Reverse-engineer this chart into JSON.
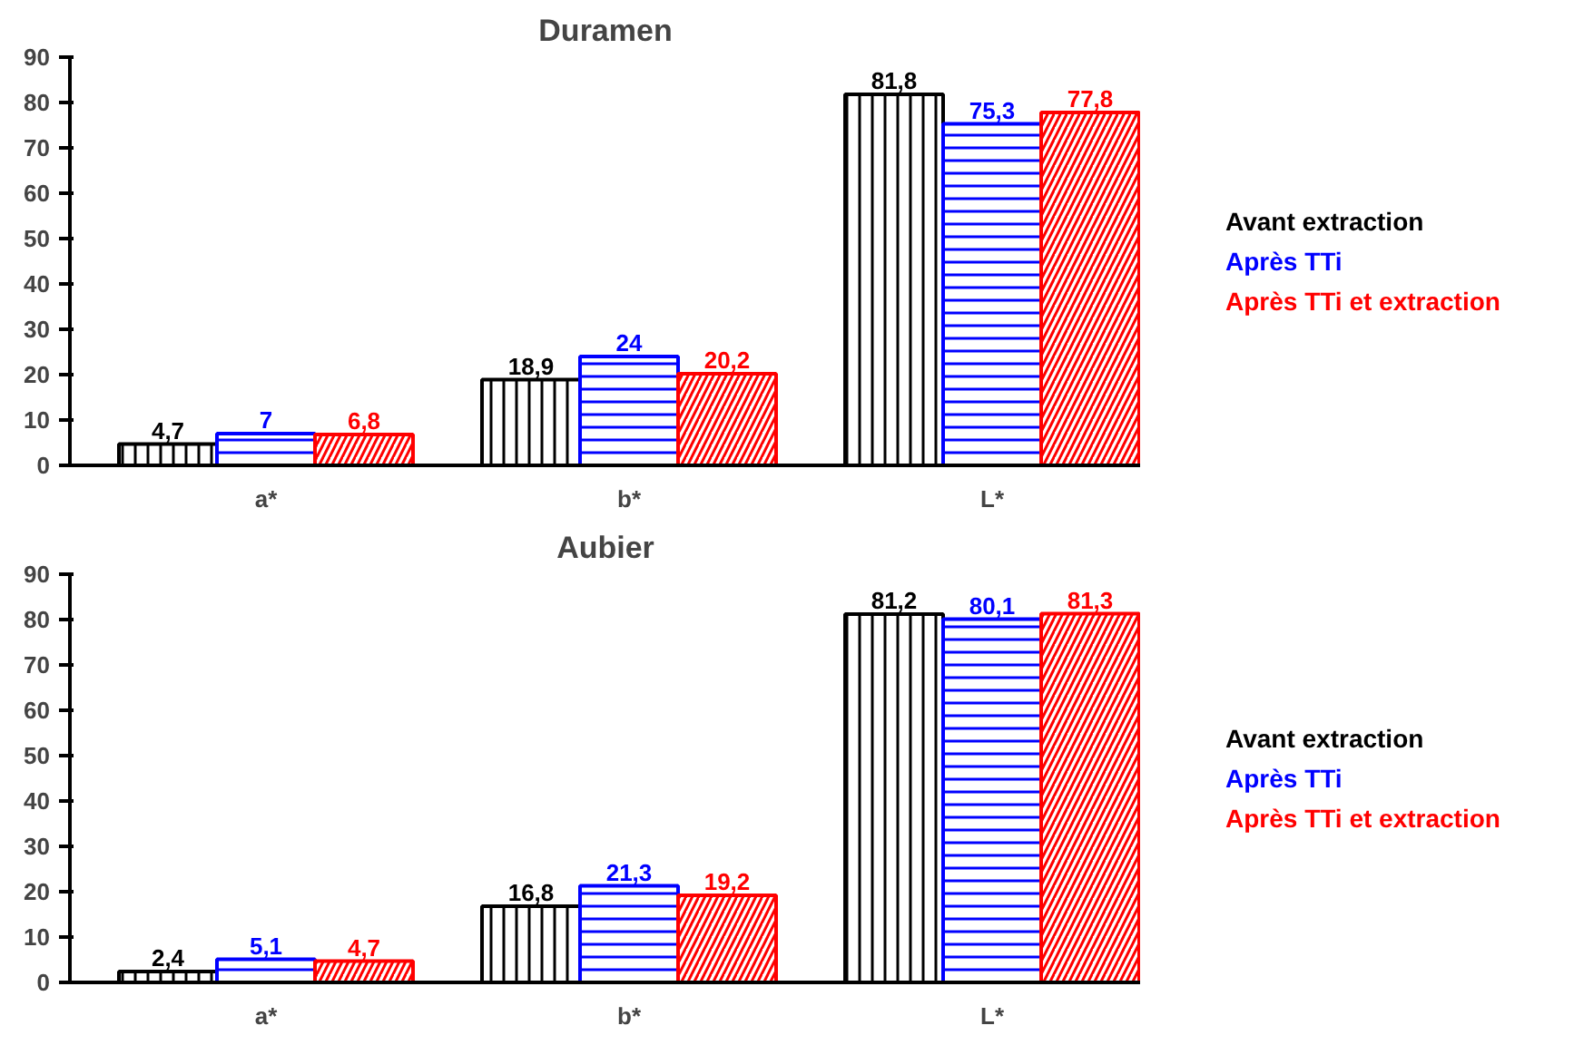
{
  "chart_data": [
    {
      "type": "bar",
      "title": "Duramen",
      "categories": [
        "a*",
        "b*",
        "L*"
      ],
      "series": [
        {
          "name": "Avant extraction",
          "color": "#000000",
          "values": [
            4.7,
            18.9,
            81.8
          ],
          "value_labels": [
            "4,7",
            "18,9",
            "81,8"
          ]
        },
        {
          "name": "Après TTi",
          "color": "#0000ff",
          "values": [
            7,
            24,
            75.3
          ],
          "value_labels": [
            "7",
            "24",
            "75,3"
          ]
        },
        {
          "name": "Après TTi et extraction",
          "color": "#ff0000",
          "values": [
            6.8,
            20.2,
            77.8
          ],
          "value_labels": [
            "6,8",
            "20,2",
            "77,8"
          ]
        }
      ],
      "ylim": [
        0,
        90
      ],
      "yticks": [
        0,
        10,
        20,
        30,
        40,
        50,
        60,
        70,
        80,
        90
      ],
      "grid": false,
      "legend": "right"
    },
    {
      "type": "bar",
      "title": "Aubier",
      "categories": [
        "a*",
        "b*",
        "L*"
      ],
      "series": [
        {
          "name": "Avant extraction",
          "color": "#000000",
          "values": [
            2.4,
            16.8,
            81.2
          ],
          "value_labels": [
            "2,4",
            "16,8",
            "81,2"
          ]
        },
        {
          "name": "Après TTi",
          "color": "#0000ff",
          "values": [
            5.1,
            21.3,
            80.1
          ],
          "value_labels": [
            "5,1",
            "21,3",
            "80,1"
          ]
        },
        {
          "name": "Après TTi et extraction",
          "color": "#ff0000",
          "values": [
            4.7,
            19.2,
            81.3
          ],
          "value_labels": [
            "4,7",
            "19,2",
            "81,3"
          ]
        }
      ],
      "ylim": [
        0,
        90
      ],
      "yticks": [
        0,
        10,
        20,
        30,
        40,
        50,
        60,
        70,
        80,
        90
      ],
      "grid": false,
      "legend": "right"
    }
  ]
}
